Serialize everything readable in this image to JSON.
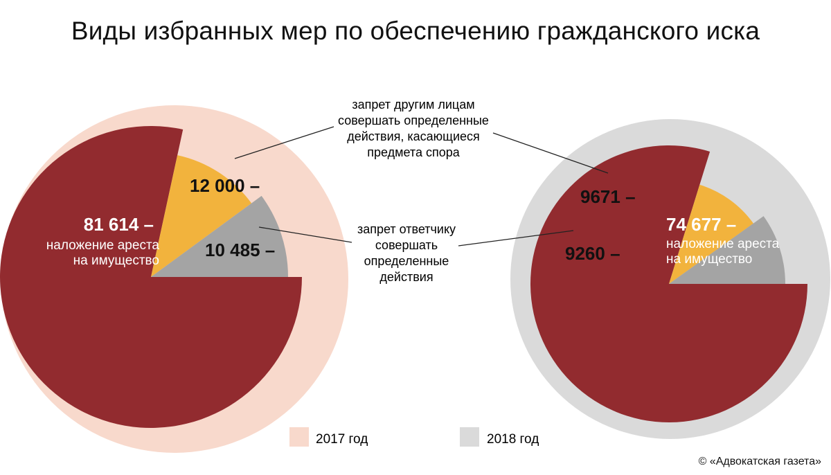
{
  "title": "Виды избранных мер по обеспечению гражданского иска",
  "copyright": "© «Адвокатская газета»",
  "colors": {
    "arrest": "#922b2f",
    "prohibition_others": "#f2b33d",
    "prohibition_defendant": "#a4a4a4",
    "bg_2017": "#f8d9cc",
    "bg_2018": "#dadada",
    "leader_line": "#222222"
  },
  "category_labels": {
    "prohibition_others": [
      "запрет другим лицам",
      "совершать определенные",
      "действия, касающиеся",
      "предмета спора"
    ],
    "prohibition_defendant": [
      "запрет ответчику",
      "совершать",
      "определенные",
      "действия"
    ]
  },
  "chart_data": [
    {
      "type": "pie",
      "year": "2017 год",
      "background_color": "#f8d9cc",
      "slices": [
        {
          "category": "наложение ареста на имущество",
          "value": 81614,
          "label": "81 614 –",
          "desc": [
            "наложение ареста",
            "на имущество"
          ],
          "color": "#922b2f"
        },
        {
          "category": "запрет другим лицам совершать определенные действия, касающиеся предмета спора",
          "value": 12000,
          "label": "12 000 –",
          "color": "#f2b33d"
        },
        {
          "category": "запрет ответчику совершать определенные действия",
          "value": 10485,
          "label": "10 485 –",
          "color": "#a4a4a4"
        }
      ]
    },
    {
      "type": "pie",
      "year": "2018 год",
      "background_color": "#dadada",
      "slices": [
        {
          "category": "наложение ареста на имущество",
          "value": 74677,
          "label": "74 677 –",
          "desc": [
            "наложение ареста",
            "на имущество"
          ],
          "color": "#922b2f"
        },
        {
          "category": "запрет другим лицам совершать определенные действия, касающиеся предмета спора",
          "value": 9671,
          "label": "9671 –",
          "color": "#f2b33d"
        },
        {
          "category": "запрет ответчику совершать определенные действия",
          "value": 9260,
          "label": "9260 –",
          "color": "#a4a4a4"
        }
      ]
    }
  ],
  "legend": [
    {
      "label": "2017 год",
      "color": "#f8d9cc"
    },
    {
      "label": "2018 год",
      "color": "#dadada"
    }
  ]
}
